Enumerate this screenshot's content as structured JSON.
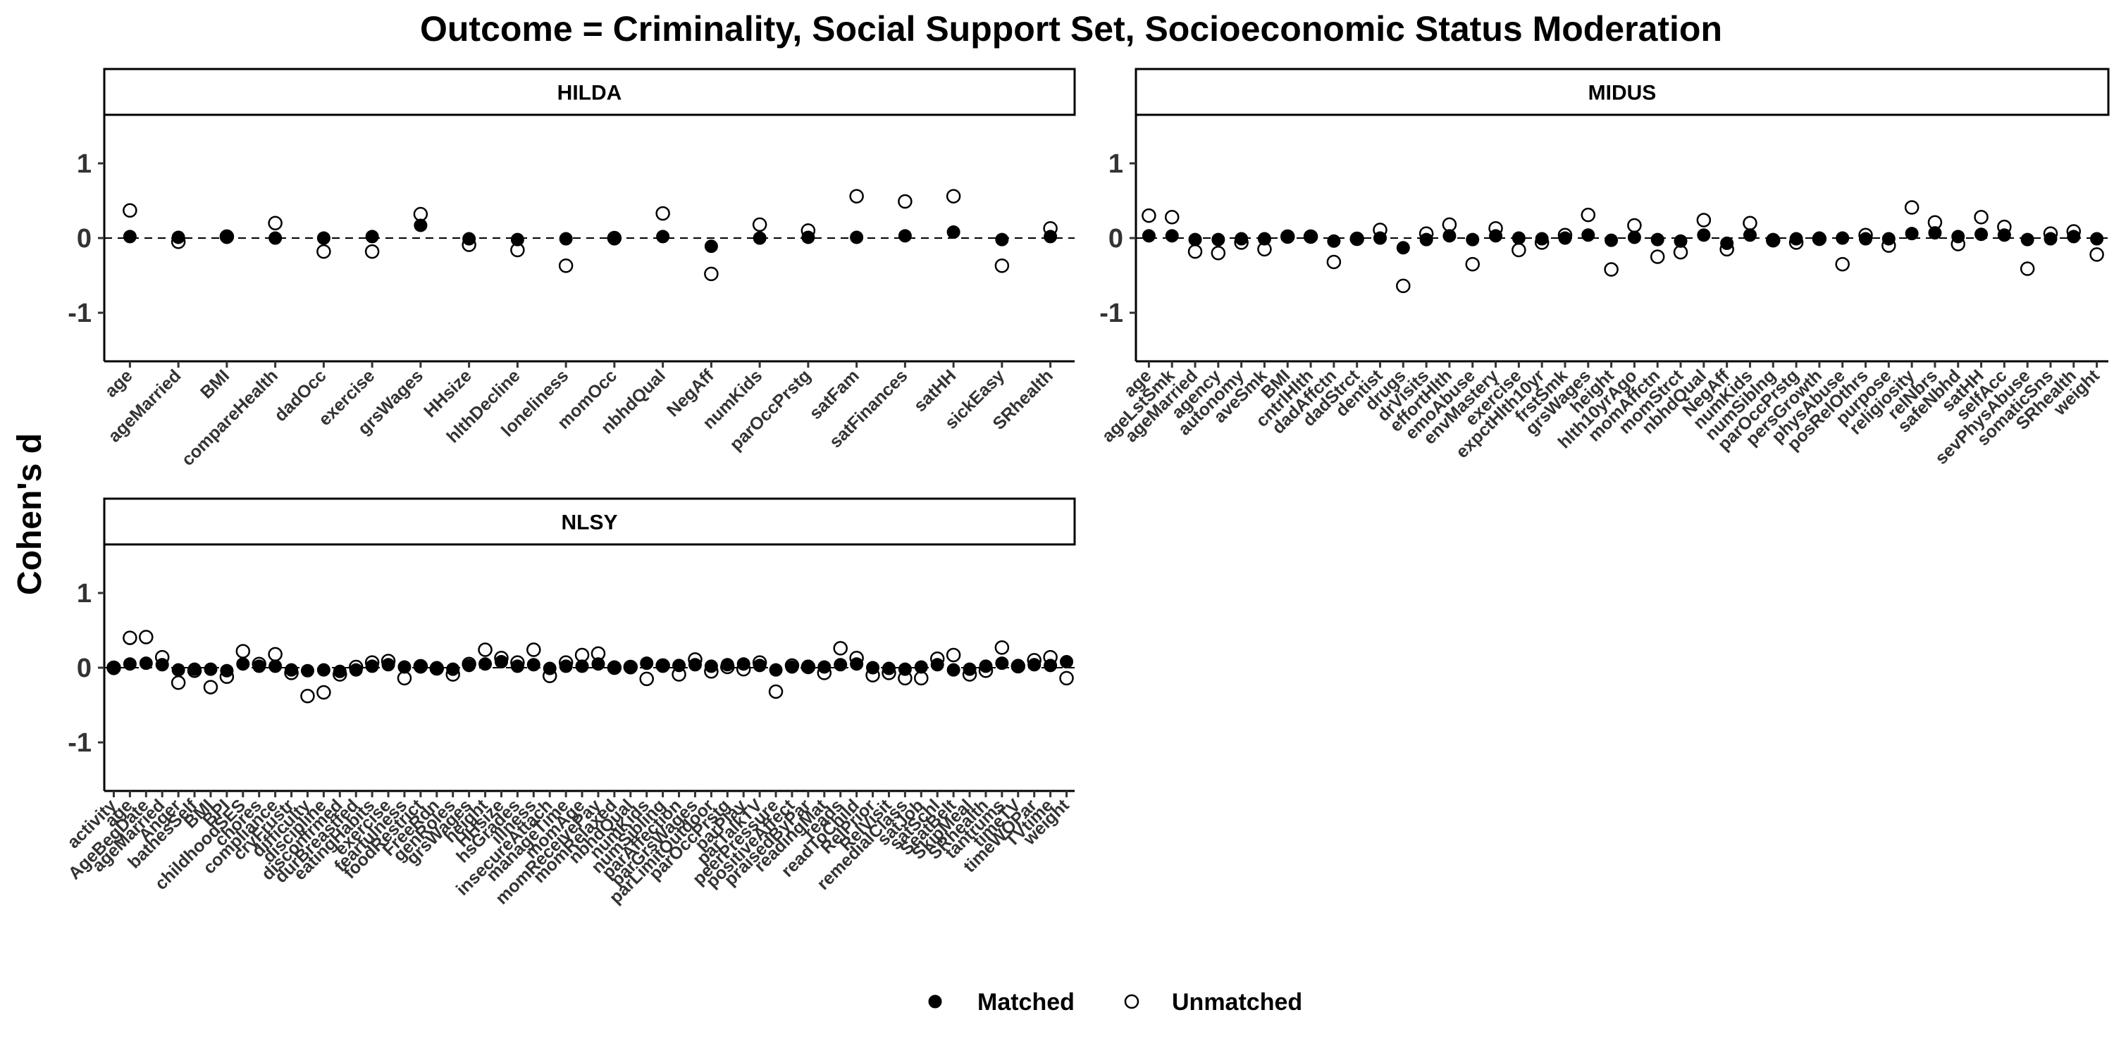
{
  "title": "Outcome = Criminality, Social Support Set, Socioeconomic Status Moderation",
  "ylabel": "Cohen's d",
  "legend": [
    {
      "name": "Matched",
      "marker": "filled-circle"
    },
    {
      "name": "Unmatched",
      "marker": "open-circle"
    }
  ],
  "colors": {
    "point": "#000000",
    "reference_line": "#000000",
    "strip_fill": "#ffffff"
  },
  "chart_data": [
    {
      "type": "scatter",
      "panel": "HILDA",
      "ylim": [
        -1.65,
        1.65
      ],
      "yticks": [
        -1,
        0,
        1
      ],
      "reference_line": 0,
      "categories": [
        "age",
        "ageMarried",
        "BMI",
        "compareHealth",
        "dadOcc",
        "exercise",
        "grsWages",
        "HHsize",
        "hlthDecline",
        "loneliness",
        "momOcc",
        "nbhdQual",
        "NegAff",
        "numKids",
        "parOccPrstg",
        "satFam",
        "satFinances",
        "satHH",
        "sickEasy",
        "SRhealth"
      ],
      "series": [
        {
          "name": "Matched",
          "values": [
            0.02,
            0.01,
            0.01,
            0.0,
            0.0,
            0.02,
            0.17,
            -0.01,
            -0.02,
            -0.01,
            -0.01,
            0.02,
            -0.11,
            0.0,
            0.01,
            0.01,
            0.03,
            0.08,
            -0.02,
            0.02
          ]
        },
        {
          "name": "Unmatched",
          "values": [
            0.37,
            -0.05,
            0.02,
            0.2,
            -0.18,
            -0.18,
            0.32,
            -0.09,
            -0.16,
            -0.37,
            0.0,
            0.33,
            -0.48,
            0.18,
            0.1,
            0.56,
            0.49,
            0.56,
            -0.37,
            0.13
          ]
        }
      ]
    },
    {
      "type": "scatter",
      "panel": "MIDUS",
      "ylim": [
        -1.65,
        1.65
      ],
      "yticks": [
        -1,
        0,
        1
      ],
      "reference_line": 0,
      "categories": [
        "age",
        "ageLstSmk",
        "ageMarried",
        "agency",
        "autonomy",
        "aveSmk",
        "BMI",
        "cntrlHlth",
        "dadAffctn",
        "dadStrct",
        "dentist",
        "drugs",
        "drVisits",
        "effortHlth",
        "emoAbuse",
        "envMastery",
        "exercise",
        "expctHlth10yr",
        "frstSmk",
        "grsWages",
        "height",
        "hlth10yrAgo",
        "momAffctn",
        "momStrct",
        "nbhdQual",
        "NegAff",
        "numKids",
        "numSiblng",
        "parOccPrstg",
        "persGrowth",
        "physAbuse",
        "posRelOthrs",
        "purpose",
        "religiosity",
        "relNbrs",
        "safeNbhd",
        "satHH",
        "selfAcc",
        "sevPhysAbuse",
        "somaticSns",
        "SRhealth",
        "weight"
      ],
      "series": [
        {
          "name": "Matched",
          "values": [
            0.03,
            0.03,
            -0.02,
            -0.02,
            -0.01,
            -0.01,
            0.02,
            0.02,
            -0.04,
            -0.01,
            0.0,
            -0.13,
            -0.02,
            0.03,
            -0.02,
            0.03,
            0.0,
            -0.01,
            0.0,
            0.04,
            -0.03,
            0.01,
            -0.02,
            -0.04,
            0.04,
            -0.07,
            0.04,
            -0.02,
            -0.01,
            0.0,
            0.0,
            -0.01,
            -0.01,
            0.06,
            0.07,
            0.02,
            0.05,
            0.04,
            -0.02,
            -0.01,
            0.02,
            -0.01
          ]
        },
        {
          "name": "Unmatched",
          "values": [
            0.3,
            0.28,
            -0.18,
            -0.2,
            -0.06,
            -0.15,
            0.02,
            0.02,
            -0.32,
            -0.01,
            0.11,
            -0.64,
            0.06,
            0.18,
            -0.35,
            0.13,
            -0.16,
            -0.06,
            0.04,
            0.31,
            -0.42,
            0.17,
            -0.25,
            -0.19,
            0.24,
            -0.15,
            0.2,
            -0.03,
            -0.06,
            -0.01,
            -0.35,
            0.04,
            -0.1,
            0.41,
            0.21,
            -0.08,
            0.28,
            0.15,
            -0.41,
            0.06,
            0.09,
            -0.22
          ]
        }
      ]
    },
    {
      "type": "scatter",
      "panel": "NLSY",
      "ylim": [
        -1.65,
        1.65
      ],
      "yticks": [
        -1,
        0,
        1
      ],
      "reference_line": 0,
      "categories": [
        "activity",
        "age",
        "AgeBegDate",
        "ageMarried",
        "Anger",
        "bathesSelf",
        "BMI",
        "BPI",
        "childhoodSES",
        "chores",
        "compliance",
        "cryFrustr",
        "difficulty",
        "discipline",
        "disconfrmed",
        "durBreastfed",
        "eatingHabits",
        "exercise",
        "fearfulness",
        "foodRestrict",
        "FreeRdn",
        "genRoles",
        "grsWages",
        "height",
        "HHsize",
        "hsGrades",
        "illness",
        "insecureAttach",
        "manageTime",
        "momAge",
        "momReceivePay",
        "momRelaxed",
        "nbhdQual",
        "numKids",
        "numSibling",
        "parAffection",
        "parGrsWages",
        "parLimitOutdoor",
        "parOccPrstg",
        "parPlay",
        "parTalkTV",
        "peerPressure",
        "positiveAffect",
        "praisedByPar",
        "readingMat",
        "reads",
        "readToChild",
        "RelPrior",
        "RelVisit",
        "remedialClass",
        "satJob",
        "satSchl",
        "SeatBelt",
        "SkipMeal",
        "SRhealth",
        "tantrums",
        "timeTV",
        "timeWOPar",
        "TVtime",
        "weight"
      ],
      "series": [
        {
          "name": "Matched",
          "values": [
            -0.01,
            0.05,
            0.06,
            0.04,
            -0.03,
            -0.02,
            -0.02,
            -0.04,
            0.05,
            0.02,
            0.02,
            -0.03,
            -0.04,
            -0.03,
            -0.05,
            -0.03,
            0.02,
            0.04,
            0.01,
            0.01,
            0.0,
            -0.02,
            0.03,
            0.05,
            0.08,
            0.02,
            0.04,
            -0.01,
            0.02,
            0.02,
            0.05,
            0.01,
            0.0,
            0.06,
            0.02,
            0.03,
            0.04,
            0.02,
            0.04,
            0.05,
            0.03,
            -0.03,
            0.01,
            0.02,
            0.01,
            0.04,
            0.05,
            0.0,
            -0.01,
            -0.02,
            0.01,
            0.04,
            -0.03,
            -0.02,
            0.02,
            0.06,
            0.03,
            0.04,
            0.03,
            0.08
          ]
        },
        {
          "name": "Unmatched",
          "values": [
            0.0,
            0.4,
            0.41,
            0.14,
            -0.2,
            -0.04,
            -0.26,
            -0.12,
            0.22,
            0.05,
            0.18,
            -0.07,
            -0.38,
            -0.33,
            -0.09,
            0.01,
            0.07,
            0.09,
            -0.14,
            0.02,
            -0.01,
            -0.09,
            0.05,
            0.24,
            0.13,
            0.07,
            0.24,
            -0.11,
            0.07,
            0.17,
            0.19,
            0.0,
            0.01,
            -0.15,
            0.03,
            -0.09,
            0.11,
            -0.05,
            0.01,
            -0.02,
            0.07,
            -0.32,
            0.03,
            0.01,
            -0.07,
            0.26,
            0.13,
            -0.1,
            -0.07,
            -0.14,
            -0.14,
            0.12,
            0.17,
            -0.09,
            -0.04,
            0.27,
            0.02,
            0.1,
            0.14,
            -0.14
          ]
        }
      ]
    }
  ]
}
